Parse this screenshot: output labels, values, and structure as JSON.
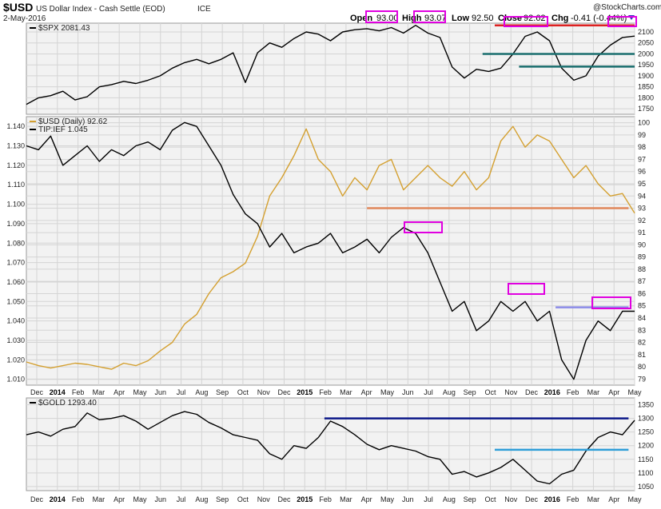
{
  "header": {
    "symbol": "$USD",
    "name": "US Dollar Index - Cash Settle (EOD)",
    "exchange": "ICE",
    "date": "2-May-2016",
    "watermark": "@StockCharts.com",
    "open_label": "Open",
    "open_value": "93.00",
    "high_label": "High",
    "high_value": "93.07",
    "low_label": "Low",
    "low_value": "92.50",
    "close_label": "Close",
    "close_value": "92.62",
    "chg_label": "Chg",
    "chg_value": "-0.41 (-0.44%)"
  },
  "colors": {
    "price": "#000000",
    "usd": "#d4a030",
    "red": "#dd2222",
    "teal": "#1a6e6e",
    "orange": "#e0875a",
    "lavender": "#8c8ce8",
    "navy": "#0d1a8a",
    "lightblue": "#2f9ed8",
    "magenta": "#e000e0",
    "panel_bg": "#f2f2f2",
    "grid": "#d4d4d4"
  },
  "x_axis": {
    "labels": [
      "Dec",
      "2014",
      "Feb",
      "Mar",
      "Apr",
      "May",
      "Jun",
      "Jul",
      "Aug",
      "Sep",
      "Oct",
      "Nov",
      "Dec",
      "2015",
      "Feb",
      "Mar",
      "Apr",
      "May",
      "Jun",
      "Jul",
      "Aug",
      "Sep",
      "Oct",
      "Nov",
      "Dec",
      "2016",
      "Feb",
      "Mar",
      "Apr",
      "May"
    ],
    "bold": [
      "2014",
      "2015",
      "2016"
    ]
  },
  "chart_data": [
    {
      "type": "line",
      "title": "$SPX 2081.43",
      "ylim": [
        1725,
        2140
      ],
      "yticks": [
        1750,
        1800,
        1850,
        1900,
        1950,
        2000,
        2050,
        2100
      ],
      "series": [
        {
          "name": "$SPX",
          "x": [
            0,
            0.02,
            0.04,
            0.06,
            0.08,
            0.1,
            0.12,
            0.14,
            0.16,
            0.18,
            0.2,
            0.22,
            0.24,
            0.26,
            0.28,
            0.3,
            0.32,
            0.34,
            0.36,
            0.38,
            0.4,
            0.42,
            0.44,
            0.46,
            0.48,
            0.5,
            0.52,
            0.54,
            0.56,
            0.58,
            0.6,
            0.62,
            0.64,
            0.66,
            0.68,
            0.7,
            0.72,
            0.74,
            0.76,
            0.78,
            0.8,
            0.82,
            0.84,
            0.86,
            0.88,
            0.9,
            0.92,
            0.94,
            0.96,
            0.98,
            1.0
          ],
          "values": [
            1770,
            1800,
            1810,
            1830,
            1790,
            1805,
            1850,
            1860,
            1875,
            1865,
            1880,
            1900,
            1935,
            1960,
            1975,
            1955,
            1975,
            2005,
            1870,
            2005,
            2050,
            2030,
            2070,
            2100,
            2090,
            2060,
            2100,
            2110,
            2115,
            2105,
            2120,
            2095,
            2130,
            2095,
            2075,
            1940,
            1890,
            1930,
            1920,
            1935,
            2000,
            2080,
            2100,
            2060,
            1935,
            1880,
            1900,
            1990,
            2040,
            2075,
            2081
          ]
        }
      ],
      "annotations": [
        {
          "kind": "hline",
          "color": "red",
          "value": 2130,
          "x_from": 0.77,
          "x_to": 1.0
        },
        {
          "kind": "hline",
          "color": "teal",
          "value": 2000,
          "x_from": 0.75,
          "x_to": 1.0
        },
        {
          "kind": "hline",
          "color": "teal",
          "value": 1942,
          "x_from": 0.81,
          "x_to": 1.0
        }
      ]
    },
    {
      "type": "line",
      "title": "$USD (Daily) 92.62",
      "title2": "TIP:IEF 1.045",
      "ylim": [
        1.007,
        1.145
      ],
      "yticks": [
        1.01,
        1.02,
        1.03,
        1.04,
        1.05,
        1.06,
        1.07,
        1.08,
        1.09,
        1.1,
        1.11,
        1.12,
        1.13,
        1.14
      ],
      "y2lim": [
        78.5,
        100.5
      ],
      "y2ticks": [
        79,
        80,
        81,
        82,
        83,
        84,
        85,
        86,
        87,
        88,
        89,
        90,
        91,
        92,
        93,
        94,
        95,
        96,
        97,
        98,
        99,
        100
      ],
      "series": [
        {
          "name": "TIP:IEF",
          "axis": "left",
          "x": [
            0,
            0.02,
            0.04,
            0.06,
            0.08,
            0.1,
            0.12,
            0.14,
            0.16,
            0.18,
            0.2,
            0.22,
            0.24,
            0.26,
            0.28,
            0.3,
            0.32,
            0.34,
            0.36,
            0.38,
            0.4,
            0.42,
            0.44,
            0.46,
            0.48,
            0.5,
            0.52,
            0.54,
            0.56,
            0.58,
            0.6,
            0.62,
            0.64,
            0.66,
            0.68,
            0.7,
            0.72,
            0.74,
            0.76,
            0.78,
            0.8,
            0.82,
            0.84,
            0.86,
            0.88,
            0.9,
            0.92,
            0.94,
            0.96,
            0.98,
            1.0
          ],
          "values": [
            1.13,
            1.128,
            1.135,
            1.12,
            1.125,
            1.13,
            1.122,
            1.128,
            1.125,
            1.13,
            1.132,
            1.128,
            1.138,
            1.142,
            1.14,
            1.13,
            1.12,
            1.105,
            1.095,
            1.09,
            1.078,
            1.085,
            1.075,
            1.078,
            1.08,
            1.085,
            1.075,
            1.078,
            1.082,
            1.075,
            1.083,
            1.088,
            1.085,
            1.075,
            1.06,
            1.045,
            1.05,
            1.035,
            1.04,
            1.05,
            1.045,
            1.05,
            1.04,
            1.045,
            1.02,
            1.01,
            1.03,
            1.04,
            1.035,
            1.045,
            1.045
          ]
        },
        {
          "name": "$USD (Daily)",
          "axis": "right",
          "x": [
            0,
            0.02,
            0.04,
            0.06,
            0.08,
            0.1,
            0.12,
            0.14,
            0.16,
            0.18,
            0.2,
            0.22,
            0.24,
            0.26,
            0.28,
            0.3,
            0.32,
            0.34,
            0.36,
            0.38,
            0.4,
            0.42,
            0.44,
            0.46,
            0.48,
            0.5,
            0.52,
            0.54,
            0.56,
            0.58,
            0.6,
            0.62,
            0.64,
            0.66,
            0.68,
            0.7,
            0.72,
            0.74,
            0.76,
            0.78,
            0.8,
            0.82,
            0.84,
            0.86,
            0.88,
            0.9,
            0.92,
            0.94,
            0.96,
            0.98,
            1.0
          ],
          "values": [
            80.4,
            80.1,
            79.9,
            80.1,
            80.3,
            80.2,
            80.0,
            79.8,
            80.3,
            80.1,
            80.5,
            81.3,
            82.0,
            83.5,
            84.3,
            86.0,
            87.3,
            87.8,
            88.5,
            90.7,
            94.0,
            95.5,
            97.3,
            99.5,
            97.0,
            96.0,
            94.0,
            95.5,
            94.5,
            96.5,
            97.0,
            94.5,
            95.5,
            96.5,
            95.5,
            94.8,
            96.0,
            94.5,
            95.5,
            98.5,
            99.7,
            98.0,
            99.0,
            98.5,
            97.0,
            95.5,
            96.5,
            95.0,
            94.0,
            94.2,
            92.6
          ]
        }
      ],
      "annotations": [
        {
          "kind": "hline",
          "color": "orange",
          "value": 93.0,
          "axis": "right",
          "x_from": 0.56,
          "x_to": 0.99
        },
        {
          "kind": "hline",
          "color": "lavender",
          "value": 1.047,
          "axis": "left",
          "x_from": 0.87,
          "x_to": 0.99
        }
      ]
    },
    {
      "type": "line",
      "title": "$GOLD 1293.40",
      "ylim": [
        1035,
        1375
      ],
      "yticks": [
        1050,
        1100,
        1150,
        1200,
        1250,
        1300,
        1350
      ],
      "series": [
        {
          "name": "$GOLD",
          "x": [
            0,
            0.02,
            0.04,
            0.06,
            0.08,
            0.1,
            0.12,
            0.14,
            0.16,
            0.18,
            0.2,
            0.22,
            0.24,
            0.26,
            0.28,
            0.3,
            0.32,
            0.34,
            0.36,
            0.38,
            0.4,
            0.42,
            0.44,
            0.46,
            0.48,
            0.5,
            0.52,
            0.54,
            0.56,
            0.58,
            0.6,
            0.62,
            0.64,
            0.66,
            0.68,
            0.7,
            0.72,
            0.74,
            0.76,
            0.78,
            0.8,
            0.82,
            0.84,
            0.86,
            0.88,
            0.9,
            0.92,
            0.94,
            0.96,
            0.98,
            1.0
          ],
          "values": [
            1240,
            1250,
            1235,
            1260,
            1270,
            1320,
            1295,
            1300,
            1310,
            1290,
            1260,
            1285,
            1310,
            1325,
            1315,
            1285,
            1265,
            1240,
            1230,
            1220,
            1170,
            1150,
            1200,
            1190,
            1230,
            1290,
            1270,
            1240,
            1205,
            1185,
            1200,
            1190,
            1180,
            1160,
            1150,
            1095,
            1105,
            1085,
            1100,
            1120,
            1150,
            1110,
            1070,
            1060,
            1095,
            1110,
            1180,
            1230,
            1250,
            1240,
            1293
          ]
        }
      ],
      "annotations": [
        {
          "kind": "hline",
          "color": "navy",
          "value": 1300,
          "x_from": 0.49,
          "x_to": 0.99
        },
        {
          "kind": "hline",
          "color": "lightblue",
          "value": 1185,
          "x_from": 0.77,
          "x_to": 0.99
        }
      ]
    }
  ]
}
